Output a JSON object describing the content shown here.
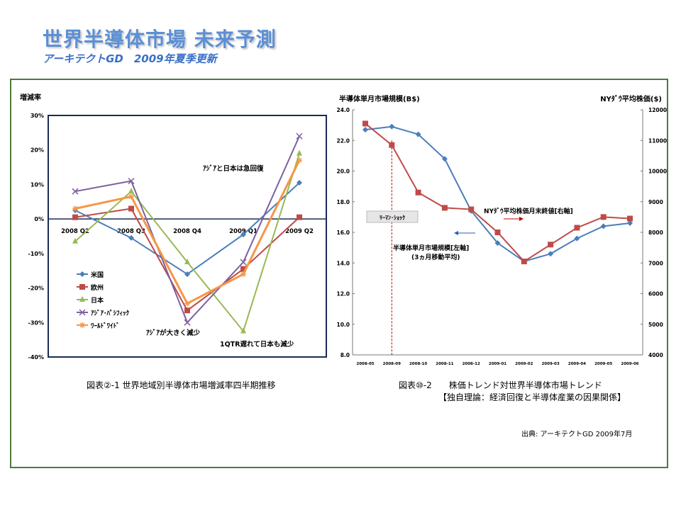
{
  "header": {
    "title": "世界半導体市場 未来予測",
    "subtitle": "アーキテクトGD　2009年夏季更新"
  },
  "source_note": "出典: アーキテクトGD 2009年7月",
  "chart_data": [
    {
      "type": "line",
      "caption": "図表②-1 世界地域別半導体市場増減率四半期推移",
      "ylabel": "増減率",
      "categories": [
        "2008 Q2",
        "2008 Q3",
        "2008 Q4",
        "2009 Q1",
        "2009 Q2"
      ],
      "yticks": [
        "30%",
        "20%",
        "10%",
        "0%",
        "-10%",
        "-20%",
        "-30%",
        "-40%"
      ],
      "ylim": [
        -40,
        30
      ],
      "grid": false,
      "legend_position": "left-bottom",
      "series": [
        {
          "name": "米国",
          "color": "#4a7ebb",
          "marker": "diamond",
          "values": [
            2.5,
            -5.5,
            -16,
            -4.5,
            10.5
          ]
        },
        {
          "name": "欧州",
          "color": "#be4b48",
          "marker": "square",
          "values": [
            0.5,
            3,
            -26.5,
            -14.5,
            0.5
          ]
        },
        {
          "name": "日本",
          "color": "#98b954",
          "marker": "triangle",
          "values": [
            -6.5,
            8,
            -12.5,
            -32.5,
            19
          ]
        },
        {
          "name": "ｱｼﾞｱ･ﾊﾟｼﾌｨｯｸ",
          "color": "#7d60a0",
          "marker": "x",
          "values": [
            8,
            11,
            -30,
            -12.5,
            24
          ]
        },
        {
          "name": "ﾜｰﾙﾄﾞﾜｲﾄﾞ",
          "color": "#f79646",
          "marker": "star",
          "values": [
            3,
            6.5,
            -24.5,
            -16,
            17
          ]
        }
      ],
      "annotations": [
        "ｱｼﾞｱと日本は急回復",
        "ｱｼﾞｱが大きく減少",
        "1QTR遅れて日本も減少"
      ]
    },
    {
      "type": "line",
      "caption_line1": "図表⑩-2　　株価トレンド対世界半導体市場トレンド",
      "caption_line2": "【独自理論：経済回復と半導体産業の因果関係】",
      "ylabel_left": "半導体単月市場規模(B$)",
      "ylabel_right": "NYﾀﾞｳ平均株価($)",
      "x": [
        "2008-05",
        "2008-09",
        "2008-10",
        "2008-11",
        "2008-12",
        "2009-01",
        "2009-02",
        "2009-03",
        "2009-04",
        "2009-05",
        "2009-06"
      ],
      "yticks_left": [
        "24.0",
        "22.0",
        "20.0",
        "18.0",
        "16.0",
        "14.0",
        "12.0",
        "10.0",
        "8.0"
      ],
      "yticks_right": [
        "12000",
        "11000",
        "10000",
        "9000",
        "8000",
        "7000",
        "6000",
        "5000",
        "4000"
      ],
      "ylim_left": [
        8,
        24
      ],
      "ylim_right": [
        4000,
        12000
      ],
      "series": [
        {
          "name": "半導体単月市場規模[左軸]",
          "axis": "left",
          "color": "#4a7ebb",
          "marker": "diamond",
          "values": [
            22.7,
            22.9,
            22.4,
            20.8,
            17.4,
            15.3,
            14.1,
            14.6,
            15.6,
            16.4,
            16.6
          ]
        },
        {
          "name": "NYﾀﾞｳ平均株価月末終値[右軸]",
          "axis": "right",
          "color": "#be4b48",
          "marker": "square",
          "values": [
            11550,
            10850,
            9300,
            8800,
            8750,
            8000,
            7050,
            7600,
            8150,
            8500,
            8450
          ]
        }
      ],
      "annotations": {
        "shock_label": "ﾘｰﾏﾝ･ｼｮｯｸ",
        "dow_label": "NYﾀﾞｳ平均株価月末終値[右軸]",
        "semi_label_line1": "半導体単月市場規模[左軸]",
        "semi_label_line2": "(3ヵ月移動平均)"
      }
    }
  ]
}
